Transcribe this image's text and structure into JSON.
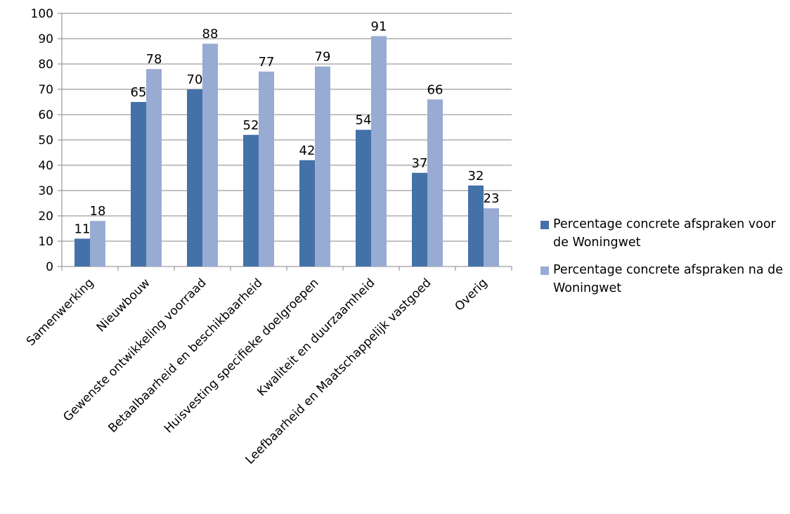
{
  "chart_data": {
    "type": "bar",
    "categories": [
      "Samenwerking",
      "Nieuwbouw",
      "Gewenste ontwikkeling voorraad",
      "Betaalbaarheid en beschikbaarheid",
      "Huisvesting specifieke doelgroepen",
      "Kwaliteit en duurzaamheid",
      "Leefbaarheid en Maatschappelijk vastgoed",
      "Overig"
    ],
    "series": [
      {
        "name": "Percentage concrete afspraken voor de Woningwet",
        "color": "#4472a8",
        "values": [
          11,
          65,
          70,
          52,
          42,
          54,
          37,
          32
        ]
      },
      {
        "name": "Percentage concrete afspraken na de Woningwet",
        "color": "#97abd3",
        "values": [
          18,
          78,
          88,
          77,
          79,
          91,
          66,
          23
        ]
      }
    ],
    "ylim": [
      0,
      100
    ],
    "yticks": [
      0,
      10,
      20,
      30,
      40,
      50,
      60,
      70,
      80,
      90,
      100
    ],
    "grid": true,
    "legend_position": "right",
    "data_labels": true
  }
}
